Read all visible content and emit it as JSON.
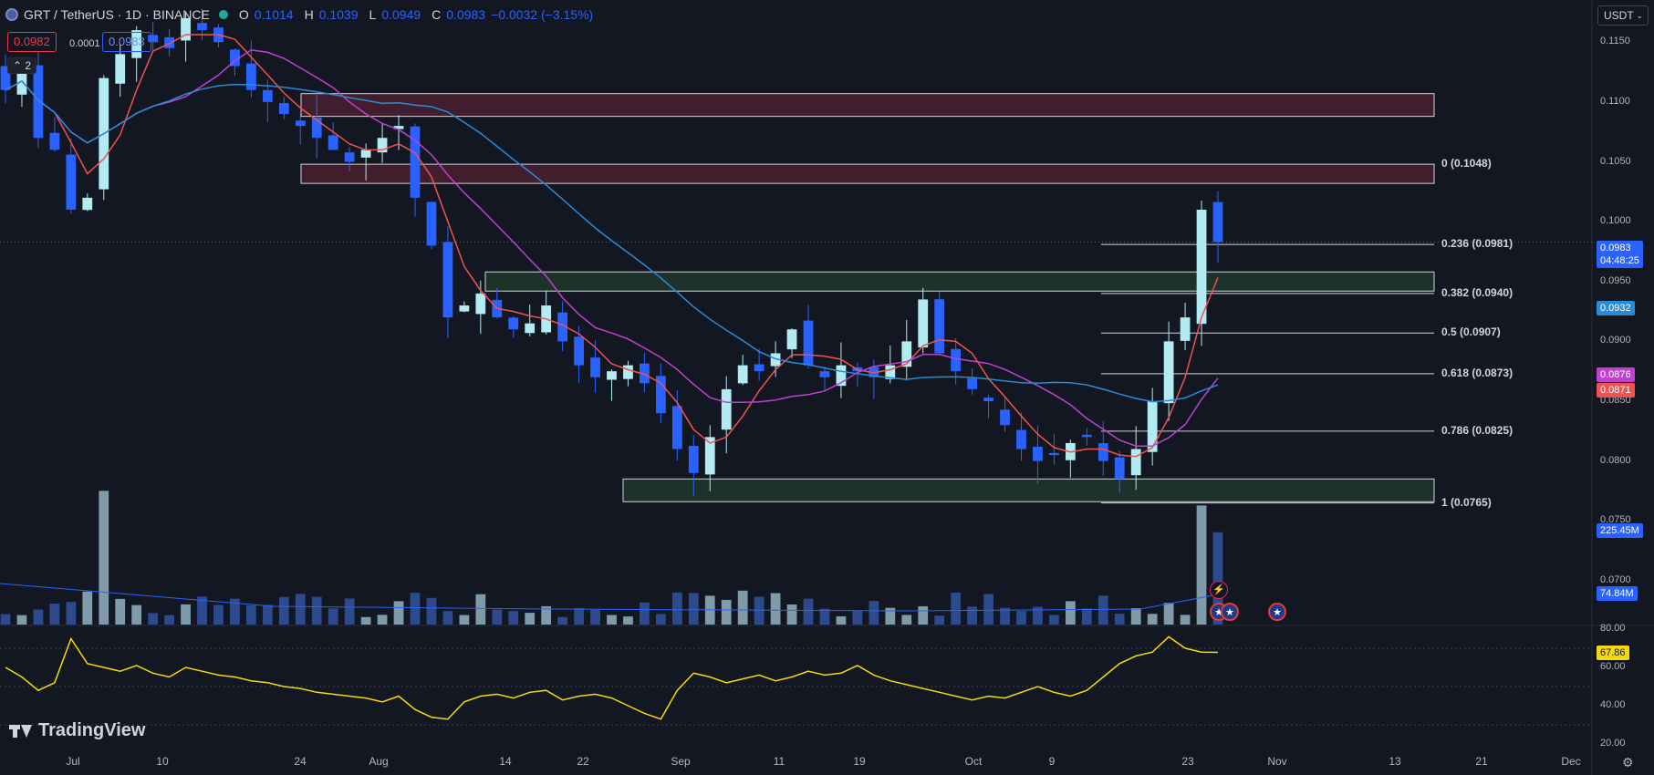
{
  "header": {
    "symbol": "GRT / TetherUS · 1D · BINANCE",
    "o_label": "O",
    "o_value": "0.1014",
    "h_label": "H",
    "h_value": "0.1039",
    "l_label": "L",
    "l_value": "0.0949",
    "c_label": "C",
    "c_value": "0.0983",
    "change": "−0.0032 (−3.15%)"
  },
  "trade": {
    "sell_price": "0.0982",
    "spread": "0.0001",
    "buy_price": "0.0983"
  },
  "indicator_toggle": "2",
  "currency": "USDT",
  "price_axis": [
    "0.1150",
    "0.1100",
    "0.1050",
    "0.1000",
    "0.0950",
    "0.0900",
    "0.0850",
    "0.0800",
    "0.0750",
    "0.0700"
  ],
  "rsi_axis": [
    "80.00",
    "60.00",
    "40.00",
    "20.00"
  ],
  "time_axis": [
    "Jul",
    "10",
    "24",
    "Aug",
    "14",
    "22",
    "Sep",
    "11",
    "19",
    "Oct",
    "9",
    "23",
    "Nov",
    "13",
    "21",
    "Dec"
  ],
  "fib_levels": [
    {
      "label": "0 (0.1048)",
      "price": 0.1048
    },
    {
      "label": "0.236 (0.0981)",
      "price": 0.0981
    },
    {
      "label": "0.382 (0.0940)",
      "price": 0.094
    },
    {
      "label": "0.5 (0.0907)",
      "price": 0.0907
    },
    {
      "label": "0.618 (0.0873)",
      "price": 0.0873
    },
    {
      "label": "0.786 (0.0825)",
      "price": 0.0825
    },
    {
      "label": "1 (0.0765)",
      "price": 0.0765
    }
  ],
  "zones": [
    {
      "kind": "resistance",
      "top": 0.1107,
      "bottom": 0.1088,
      "color": "#4a2030"
    },
    {
      "kind": "resistance",
      "top": 0.1048,
      "bottom": 0.1032,
      "color": "#4a2030"
    },
    {
      "kind": "support",
      "top": 0.0958,
      "bottom": 0.0942,
      "color": "#20382a"
    },
    {
      "kind": "support",
      "top": 0.0785,
      "bottom": 0.0766,
      "color": "#20382a"
    }
  ],
  "price_labels": {
    "last": "0.0983",
    "countdown": "04:48:25",
    "ma_blue": "0.0932",
    "ma_purple": "0.0876",
    "ma_red": "0.0871",
    "volume": "225.45M",
    "volume_ma": "74.84M",
    "rsi": "67.86"
  },
  "colors": {
    "up": "#b2ebf2",
    "down": "#2962ff",
    "ma_red": "#ef5350",
    "ma_purple": "#c040d0",
    "ma_blue": "#2a8bd6",
    "rsi": "#f5d90a",
    "volume_up": "#7f9aa8",
    "volume_down": "#2c4a8c"
  },
  "chart_data": {
    "type": "candlestick",
    "symbol": "GRT/USDT",
    "interval": "1D",
    "ylim": [
      0.069,
      0.117
    ],
    "rsi_ylim": [
      20,
      80
    ],
    "close_path": [
      0.111,
      0.1125,
      0.107,
      0.106,
      0.101,
      0.102,
      0.112,
      0.114,
      0.116,
      0.115,
      0.1145,
      0.117,
      0.116,
      0.115,
      0.113,
      0.111,
      0.11,
      0.109,
      0.108,
      0.107,
      0.106,
      0.105,
      0.106,
      0.107,
      0.108,
      0.102,
      0.098,
      0.092,
      0.093,
      0.094,
      0.092,
      0.091,
      0.0915,
      0.093,
      0.09,
      0.088,
      0.087,
      0.0875,
      0.088,
      0.0865,
      0.084,
      0.081,
      0.079,
      0.082,
      0.086,
      0.088,
      0.0875,
      0.089,
      0.091,
      0.088,
      0.087,
      0.088,
      0.0875,
      0.087,
      0.088,
      0.09,
      0.0935,
      0.089,
      0.0875,
      0.086,
      0.085,
      0.083,
      0.081,
      0.08,
      0.0805,
      0.0815,
      0.082,
      0.08,
      0.0785,
      0.081,
      0.085,
      0.09,
      0.092,
      0.101,
      0.0983
    ],
    "rsi_path": [
      60,
      55,
      48,
      52,
      75,
      62,
      60,
      58,
      61,
      57,
      55,
      60,
      58,
      56,
      55,
      53,
      52,
      50,
      49,
      47,
      46,
      45,
      44,
      42,
      45,
      38,
      34,
      33,
      42,
      45,
      46,
      44,
      47,
      48,
      43,
      45,
      46,
      44,
      40,
      36,
      33,
      48,
      57,
      55,
      52,
      54,
      56,
      53,
      55,
      58,
      56,
      57,
      61,
      56,
      53,
      51,
      49,
      47,
      45,
      43,
      45,
      44,
      47,
      50,
      47,
      45,
      48,
      55,
      62,
      66,
      68,
      76,
      70,
      68,
      67.86
    ],
    "moving_averages": [
      "red",
      "purple",
      "blue"
    ],
    "legend": "none"
  }
}
